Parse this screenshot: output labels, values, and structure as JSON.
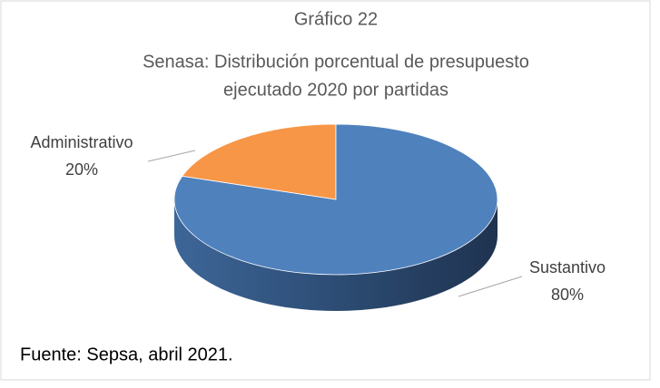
{
  "chart_data": {
    "type": "pie3d",
    "title": "Gráfico 22",
    "subtitle": [
      "Senasa: Distribución porcentual de presupuesto",
      "ejecutado 2020 por partidas"
    ],
    "categories": [
      "Administrativo",
      "Sustantivo"
    ],
    "values": [
      20,
      80
    ],
    "value_labels": [
      "20%",
      "80%"
    ],
    "colors": [
      "#f79646",
      "#4f81bd"
    ],
    "source": "Fuente: Sepsa, abril 2021."
  }
}
